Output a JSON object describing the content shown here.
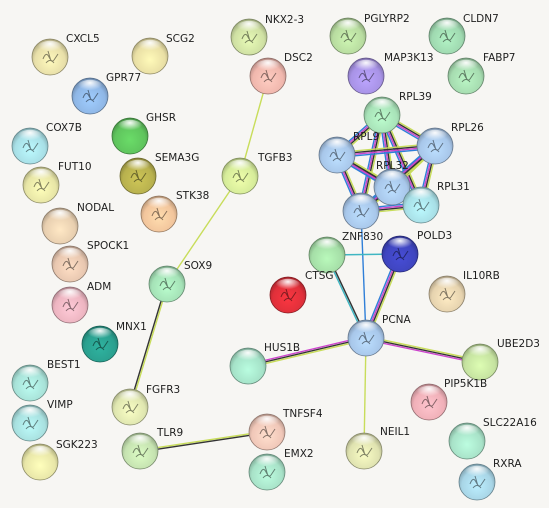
{
  "network": {
    "nodes": [
      {
        "id": "CXCL5",
        "color": "#e8dfa9",
        "structure": true
      },
      {
        "id": "SCG2",
        "color": "#e9dfa5",
        "structure": false
      },
      {
        "id": "NKX2-3",
        "color": "#cfe0a3",
        "structure": true
      },
      {
        "id": "PGLYRP2",
        "color": "#b8dca0",
        "structure": true
      },
      {
        "id": "CLDN7",
        "color": "#9fd9b0",
        "structure": true
      },
      {
        "id": "GPR77",
        "color": "#8fb7e6",
        "structure": true
      },
      {
        "id": "DSC2",
        "color": "#f0b7ad",
        "structure": true
      },
      {
        "id": "MAP3K13",
        "color": "#a893e6",
        "structure": true
      },
      {
        "id": "FABP7",
        "color": "#a6dcb0",
        "structure": true
      },
      {
        "id": "GHSR",
        "color": "#5fc45d",
        "structure": false
      },
      {
        "id": "RPL39",
        "color": "#a8e2b8",
        "structure": true
      },
      {
        "id": "COX7B",
        "color": "#a8dfe6",
        "structure": true
      },
      {
        "id": "RPL9",
        "color": "#a8c7ea",
        "structure": true
      },
      {
        "id": "RPL26",
        "color": "#a8c7ea",
        "structure": true
      },
      {
        "id": "SEMA3G",
        "color": "#b8b14e",
        "structure": true
      },
      {
        "id": "TGFB3",
        "color": "#d6ec9a",
        "structure": true
      },
      {
        "id": "FUT10",
        "color": "#e7e5a6",
        "structure": true
      },
      {
        "id": "RPL32",
        "color": "#a8c7ea",
        "structure": true
      },
      {
        "id": "RPL31",
        "color": "#a8dfe6",
        "structure": true
      },
      {
        "id": "STK38",
        "color": "#f2c59c",
        "structure": true
      },
      {
        "id": "NODAL",
        "color": "#e8cfb0",
        "structure": false
      },
      {
        "id": "ZNF830",
        "color": "#a8c7ea",
        "structure": true
      },
      {
        "id": "POLD3",
        "color": "#3f45bf",
        "structure": true
      },
      {
        "id": "SPOCK1",
        "color": "#e8c7b0",
        "structure": true
      },
      {
        "id": "SOX9",
        "color": "#a5e2b7",
        "structure": true
      },
      {
        "id": "CTSG",
        "color": "#a5dea7",
        "structure": false
      },
      {
        "id": "IL10RB",
        "color": "#e6d3af",
        "structure": true
      },
      {
        "id": "ADM",
        "color": "#edb5c1",
        "structure": true
      },
      {
        "id": "CTSG_RED",
        "color": "#e0303a",
        "structure": true
      },
      {
        "id": "MNX1",
        "color": "#2aa08f",
        "structure": true
      },
      {
        "id": "PCNA",
        "color": "#a8c7ea",
        "structure": true
      },
      {
        "id": "HUS1B",
        "color": "#a5e2c8",
        "structure": false
      },
      {
        "id": "UBE2D3",
        "color": "#c5e2a0",
        "structure": false
      },
      {
        "id": "BEST1",
        "color": "#a8e2d8",
        "structure": true
      },
      {
        "id": "PIP5K1B",
        "color": "#f0b0b8",
        "structure": true
      },
      {
        "id": "FGFR3",
        "color": "#dfe6b0",
        "structure": true
      },
      {
        "id": "VIMP",
        "color": "#a8e0df",
        "structure": true
      },
      {
        "id": "NEIL1",
        "color": "#dfe2b0",
        "structure": true
      },
      {
        "id": "SLC22A16",
        "color": "#a8e2c8",
        "structure": false
      },
      {
        "id": "TNFSF4",
        "color": "#f0c7b8",
        "structure": true
      },
      {
        "id": "TLR9",
        "color": "#c5e2b0",
        "structure": true
      },
      {
        "id": "SGK223",
        "color": "#e8e6a8",
        "structure": false
      },
      {
        "id": "EMX2",
        "color": "#a8e2c8",
        "structure": true
      },
      {
        "id": "RXRA",
        "color": "#a8d5e6",
        "structure": true
      }
    ],
    "labels": {
      "CXCL5": "CXCL5",
      "SCG2": "SCG2",
      "NKX2-3": "NKX2-3",
      "PGLYRP2": "PGLYRP2",
      "CLDN7": "CLDN7",
      "GPR77": "GPR77",
      "DSC2": "DSC2",
      "MAP3K13": "MAP3K13",
      "FABP7": "FABP7",
      "GHSR": "GHSR",
      "RPL39": "RPL39",
      "COX7B": "COX7B",
      "RPL9": "RPL9",
      "RPL26": "RPL26",
      "SEMA3G": "SEMA3G",
      "TGFB3": "TGFB3",
      "FUT10": "FUT10",
      "RPL32": "RPL32",
      "RPL31": "RPL31",
      "STK38": "STK38",
      "NODAL": "NODAL",
      "ZNF830": "ZNF830",
      "POLD3": "POLD3",
      "SPOCK1": "SPOCK1",
      "SOX9": "SOX9",
      "CTSG": "CTSG",
      "IL10RB": "IL10RB",
      "ADM": "ADM",
      "CTSG_RED": "",
      "MNX1": "MNX1",
      "PCNA": "PCNA",
      "HUS1B": "HUS1B",
      "UBE2D3": "UBE2D3",
      "BEST1": "BEST1",
      "PIP5K1B": "PIP5K1B",
      "FGFR3": "FGFR3",
      "VIMP": "VIMP",
      "NEIL1": "NEIL1",
      "SLC22A16": "SLC22A16",
      "TNFSF4": "TNFSF4",
      "TLR9": "TLR9",
      "SGK223": "SGK223",
      "EMX2": "EMX2",
      "RXRA": "RXRA"
    },
    "edges": [
      {
        "source": "DSC2",
        "target": "TGFB3",
        "colors": [
          "#c8dd5a"
        ]
      },
      {
        "source": "TGFB3",
        "target": "SOX9",
        "colors": [
          "#c8dd5a"
        ]
      },
      {
        "source": "SOX9",
        "target": "FGFR3",
        "colors": [
          "#c8dd5a",
          "#333333"
        ]
      },
      {
        "source": "TLR9",
        "target": "TNFSF4",
        "colors": [
          "#c8dd5a",
          "#333333"
        ]
      },
      {
        "source": "ZNF830",
        "target": "PCNA",
        "colors": [
          "#2f7fd8"
        ]
      },
      {
        "source": "CTSG",
        "target": "POLD3",
        "colors": [
          "#3fb6c2"
        ]
      },
      {
        "source": "CTSG",
        "target": "PCNA",
        "colors": [
          "#333333",
          "#3fb6c2"
        ]
      },
      {
        "source": "POLD3",
        "target": "PCNA",
        "colors": [
          "#c8dd5a",
          "#333333",
          "#cc44cc",
          "#2f7fd8"
        ]
      },
      {
        "source": "PCNA",
        "target": "HUS1B",
        "colors": [
          "#c8dd5a",
          "#333333",
          "#cc44cc"
        ]
      },
      {
        "source": "PCNA",
        "target": "UBE2D3",
        "colors": [
          "#c8dd5a",
          "#333333",
          "#cc44cc"
        ]
      },
      {
        "source": "PCNA",
        "target": "NEIL1",
        "colors": [
          "#c8dd5a"
        ]
      },
      {
        "source": "RPL39",
        "target": "RPL9",
        "colors": [
          "#c8dd5a",
          "#333333",
          "#cc44cc",
          "#2f7fd8"
        ]
      },
      {
        "source": "RPL39",
        "target": "RPL26",
        "colors": [
          "#c8dd5a",
          "#333333",
          "#cc44cc",
          "#2f7fd8"
        ]
      },
      {
        "source": "RPL39",
        "target": "RPL32",
        "colors": [
          "#c8dd5a",
          "#333333",
          "#cc44cc",
          "#2f7fd8"
        ]
      },
      {
        "source": "RPL39",
        "target": "RPL31",
        "colors": [
          "#c8dd5a",
          "#333333",
          "#cc44cc",
          "#2f7fd8"
        ]
      },
      {
        "source": "RPL39",
        "target": "ZNF830",
        "colors": [
          "#c8dd5a",
          "#333333",
          "#cc44cc",
          "#2f7fd8"
        ]
      },
      {
        "source": "RPL9",
        "target": "RPL26",
        "colors": [
          "#c8dd5a",
          "#333333",
          "#cc44cc",
          "#2f7fd8"
        ]
      },
      {
        "source": "RPL9",
        "target": "RPL32",
        "colors": [
          "#c8dd5a",
          "#333333",
          "#cc44cc",
          "#2f7fd8"
        ]
      },
      {
        "source": "RPL9",
        "target": "RPL31",
        "colors": [
          "#c8dd5a",
          "#333333",
          "#cc44cc",
          "#2f7fd8"
        ]
      },
      {
        "source": "RPL9",
        "target": "ZNF830",
        "colors": [
          "#c8dd5a",
          "#333333",
          "#cc44cc",
          "#2f7fd8"
        ]
      },
      {
        "source": "RPL26",
        "target": "RPL32",
        "colors": [
          "#c8dd5a",
          "#333333",
          "#cc44cc",
          "#2f7fd8"
        ]
      },
      {
        "source": "RPL26",
        "target": "RPL31",
        "colors": [
          "#c8dd5a",
          "#333333",
          "#cc44cc",
          "#2f7fd8"
        ]
      },
      {
        "source": "RPL26",
        "target": "ZNF830",
        "colors": [
          "#c8dd5a",
          "#333333",
          "#cc44cc",
          "#2f7fd8"
        ]
      },
      {
        "source": "RPL32",
        "target": "RPL31",
        "colors": [
          "#c8dd5a",
          "#333333",
          "#cc44cc",
          "#2f7fd8"
        ]
      },
      {
        "source": "RPL32",
        "target": "ZNF830",
        "colors": [
          "#c8dd5a",
          "#333333",
          "#cc44cc",
          "#2f7fd8"
        ]
      },
      {
        "source": "RPL31",
        "target": "ZNF830",
        "colors": [
          "#c8dd5a",
          "#333333",
          "#cc44cc",
          "#2f7fd8"
        ]
      }
    ]
  }
}
